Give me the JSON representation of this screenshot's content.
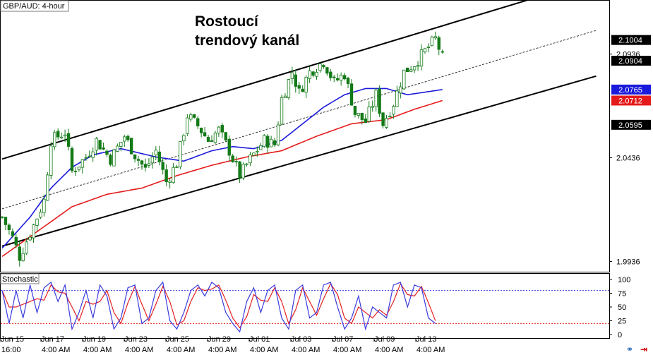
{
  "instrument_label": "GBP/AUD: 4-hour",
  "headline_lines": [
    "Rostoucí",
    "trendový kanál"
  ],
  "indicator_label": "Stochastic",
  "colors": {
    "candle": "#137a17",
    "ma_fast": "#1a1adc",
    "ma_slow": "#e51b1b",
    "stoch_k": "#3a3ae0",
    "stoch_d": "#e52020",
    "level_80": "#3a3ae0",
    "level_20": "#e52020"
  },
  "icons": [
    "link-icon",
    "close-icon"
  ],
  "chart_data": [
    {
      "type": "candlestick",
      "title": "GBP/AUD: 4-hour",
      "ylim": [
        1.989,
        2.119
      ],
      "price_ticks": [
        "2.0936",
        "2.0436",
        "1.9936"
      ],
      "price_labels": [
        {
          "value": 2.1004,
          "text": "2.1004",
          "bg": "#000000",
          "fg": "#ffffff"
        },
        {
          "value": 2.0904,
          "text": "2.0904",
          "bg": "#000000",
          "fg": "#ffffff"
        },
        {
          "value": 2.0765,
          "text": "2.0765",
          "bg": "#1a1adc",
          "fg": "#ffffff"
        },
        {
          "value": 2.0712,
          "text": "2.0712",
          "bg": "#e51b1b",
          "fg": "#ffffff"
        },
        {
          "value": 2.0595,
          "text": "2.0595",
          "bg": "#000000",
          "fg": "#ffffff"
        }
      ],
      "x_date_labels": [
        "Jun 15",
        "Jun 17",
        "Jun 19",
        "Jun 23",
        "Jun 25",
        "Jun 29",
        "Jul 01",
        "Jul 03",
        "Jul 07",
        "Jul 09",
        "Jul 13"
      ],
      "x_time_labels": [
        "16:00",
        "4:00 AM",
        "4:00 AM",
        "4:00 AM",
        "4:00 AM",
        "4:00 AM",
        "4:00 AM",
        "4:00 AM",
        "4:00 AM",
        "4:00 AM",
        "4:00 AM"
      ],
      "close_path": [
        [
          0,
          2.015
        ],
        [
          3,
          2.005
        ],
        [
          5,
          1.996
        ],
        [
          9,
          2.011
        ],
        [
          12,
          2.023
        ],
        [
          14,
          2.052
        ],
        [
          18,
          2.056
        ],
        [
          20,
          2.037
        ],
        [
          24,
          2.044
        ],
        [
          27,
          2.052
        ],
        [
          31,
          2.043
        ],
        [
          35,
          2.054
        ],
        [
          38,
          2.045
        ],
        [
          41,
          2.038
        ],
        [
          44,
          2.047
        ],
        [
          47,
          2.032
        ],
        [
          50,
          2.041
        ],
        [
          53,
          2.064
        ],
        [
          56,
          2.059
        ],
        [
          59,
          2.052
        ],
        [
          62,
          2.057
        ],
        [
          65,
          2.047
        ],
        [
          68,
          2.035
        ],
        [
          71,
          2.043
        ],
        [
          75,
          2.052
        ],
        [
          78,
          2.05
        ],
        [
          80,
          2.072
        ],
        [
          83,
          2.085
        ],
        [
          85,
          2.075
        ],
        [
          88,
          2.085
        ],
        [
          92,
          2.09
        ],
        [
          95,
          2.08
        ],
        [
          98,
          2.084
        ],
        [
          101,
          2.065
        ],
        [
          104,
          2.061
        ],
        [
          107,
          2.074
        ],
        [
          109,
          2.06
        ],
        [
          112,
          2.07
        ],
        [
          115,
          2.085
        ],
        [
          118,
          2.089
        ],
        [
          121,
          2.095
        ],
        [
          124,
          2.101
        ],
        [
          126,
          2.092
        ]
      ],
      "ma_slow": [
        [
          0,
          1.996
        ],
        [
          10,
          2.008
        ],
        [
          20,
          2.02
        ],
        [
          30,
          2.026
        ],
        [
          40,
          2.029
        ],
        [
          50,
          2.035
        ],
        [
          60,
          2.04
        ],
        [
          70,
          2.044
        ],
        [
          80,
          2.047
        ],
        [
          90,
          2.054
        ],
        [
          100,
          2.06
        ],
        [
          110,
          2.062
        ],
        [
          118,
          2.067
        ],
        [
          126,
          2.0712
        ]
      ],
      "ma_fast": [
        [
          0,
          2.0
        ],
        [
          8,
          2.015
        ],
        [
          14,
          2.029
        ],
        [
          20,
          2.039
        ],
        [
          26,
          2.045
        ],
        [
          34,
          2.048
        ],
        [
          44,
          2.044
        ],
        [
          52,
          2.042
        ],
        [
          60,
          2.047
        ],
        [
          66,
          2.049
        ],
        [
          72,
          2.048
        ],
        [
          80,
          2.052
        ],
        [
          86,
          2.06
        ],
        [
          92,
          2.068
        ],
        [
          98,
          2.074
        ],
        [
          104,
          2.077
        ],
        [
          110,
          2.077
        ],
        [
          116,
          2.074
        ],
        [
          120,
          2.075
        ],
        [
          126,
          2.0765
        ]
      ],
      "channel_upper": [
        [
          0,
          2.043
        ],
        [
          155,
          2.122
        ]
      ],
      "channel_lower": [
        [
          0,
          2.001
        ],
        [
          170,
          2.083
        ]
      ],
      "channel_mid": [
        [
          0,
          2.019
        ],
        [
          170,
          2.105
        ]
      ],
      "bars_total": 170
    },
    {
      "type": "line",
      "title": "Stochastic",
      "ylim": [
        0,
        100
      ],
      "y_ticks": [
        "100",
        "75",
        "50",
        "25",
        "0"
      ],
      "levels": [
        80,
        20
      ],
      "k_path": [
        [
          0,
          80
        ],
        [
          2,
          20
        ],
        [
          4,
          80
        ],
        [
          6,
          30
        ],
        [
          8,
          90
        ],
        [
          10,
          40
        ],
        [
          12,
          85
        ],
        [
          14,
          95
        ],
        [
          16,
          60
        ],
        [
          18,
          90
        ],
        [
          20,
          10
        ],
        [
          22,
          40
        ],
        [
          24,
          80
        ],
        [
          26,
          30
        ],
        [
          28,
          90
        ],
        [
          30,
          70
        ],
        [
          32,
          10
        ],
        [
          34,
          30
        ],
        [
          36,
          85
        ],
        [
          38,
          90
        ],
        [
          40,
          20
        ],
        [
          42,
          30
        ],
        [
          44,
          80
        ],
        [
          46,
          95
        ],
        [
          48,
          25
        ],
        [
          50,
          10
        ],
        [
          52,
          40
        ],
        [
          54,
          80
        ],
        [
          56,
          90
        ],
        [
          58,
          70
        ],
        [
          60,
          95
        ],
        [
          62,
          85
        ],
        [
          64,
          40
        ],
        [
          66,
          20
        ],
        [
          68,
          5
        ],
        [
          70,
          60
        ],
        [
          72,
          85
        ],
        [
          74,
          40
        ],
        [
          76,
          80
        ],
        [
          78,
          90
        ],
        [
          80,
          30
        ],
        [
          82,
          10
        ],
        [
          84,
          80
        ],
        [
          86,
          90
        ],
        [
          88,
          30
        ],
        [
          90,
          40
        ],
        [
          92,
          90
        ],
        [
          94,
          95
        ],
        [
          96,
          50
        ],
        [
          98,
          10
        ],
        [
          100,
          30
        ],
        [
          102,
          70
        ],
        [
          104,
          10
        ],
        [
          106,
          50
        ],
        [
          108,
          40
        ],
        [
          110,
          30
        ],
        [
          112,
          90
        ],
        [
          114,
          95
        ],
        [
          116,
          50
        ],
        [
          118,
          90
        ],
        [
          120,
          85
        ],
        [
          122,
          30
        ],
        [
          124,
          20
        ]
      ]
    }
  ]
}
